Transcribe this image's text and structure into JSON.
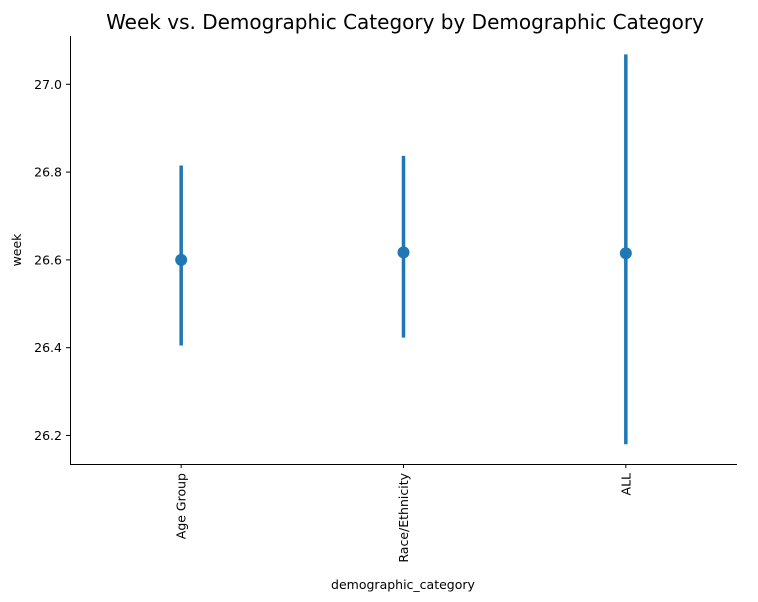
{
  "chart_data": {
    "type": "pointplot",
    "title": "Week vs. Demographic Category by Demographic Category",
    "xlabel": "demographic_category",
    "ylabel": "week",
    "categories": [
      "Age Group",
      "Race/Ethnicity",
      "ALL"
    ],
    "values": [
      26.6,
      26.617,
      26.615
    ],
    "ci_low": [
      26.405,
      26.423,
      26.18
    ],
    "ci_high": [
      26.815,
      26.837,
      27.068
    ],
    "ylim": [
      26.135,
      27.11
    ],
    "yticks": [
      26.2,
      26.4,
      26.6,
      26.8,
      27.0
    ],
    "ytick_labels": [
      "26.2",
      "26.4",
      "26.6",
      "26.8",
      "27.0"
    ],
    "grid": false,
    "legend": "none",
    "color": "#1f77b4"
  }
}
